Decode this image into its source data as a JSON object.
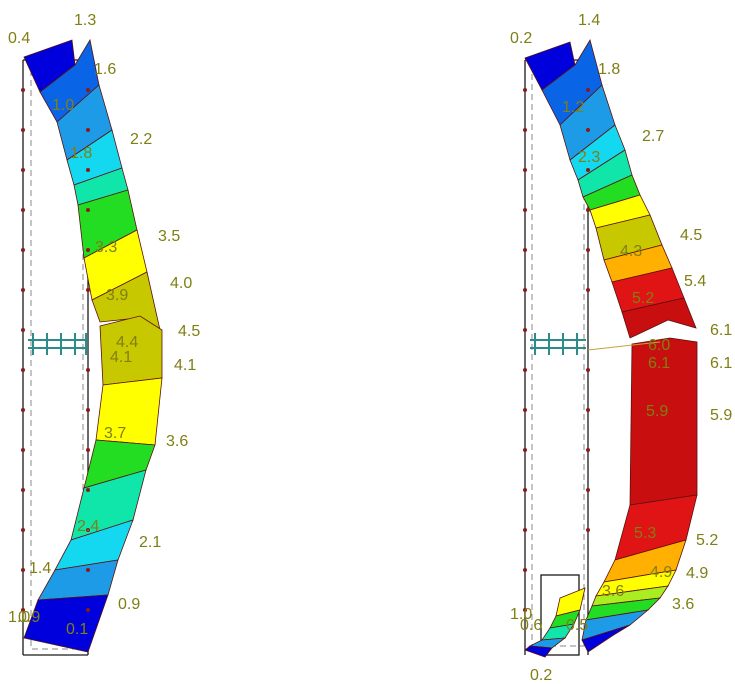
{
  "colors": {
    "label": "#7f7f14",
    "frame": "#1a1a1a",
    "node_dot": "#8b1a1a",
    "support": "#2e8b8b",
    "contour_line": "#5a1010",
    "contour_scale": [
      "#0000dd",
      "#0a64e6",
      "#1e9be6",
      "#14d8f0",
      "#10e6aa",
      "#22dd22",
      "#aaee22",
      "#ffff00",
      "#c8c800",
      "#ffb000",
      "#ff5a14",
      "#e01414",
      "#c80e0e"
    ]
  },
  "left_figure": {
    "labels": {
      "top_left": "0.4",
      "top": "1.3",
      "l1_6": "1.6",
      "l1_0": "1.0",
      "l2_2": "2.2",
      "l1_8": "1.8",
      "l3_5": "3.5",
      "l3_3": "3.3",
      "l4_0": "4.0",
      "l3_9": "3.9",
      "l4_5": "4.5",
      "l4_4": "4.4",
      "l4_1a": "4.1",
      "l4_1b": "4.1",
      "l3_7": "3.7",
      "l3_6": "3.6",
      "l2_4": "2.4",
      "l2_1": "2.1",
      "l1_4": "1.4",
      "l0_9": "0.9",
      "l1_0_bottom": "1.0",
      "l0_9_bottom": "0.9",
      "l0_1": "0.1"
    }
  },
  "right_figure": {
    "labels": {
      "top_left": "0.2",
      "top": "1.4",
      "r1_8": "1.8",
      "r1_2": "1.2",
      "r2_7": "2.7",
      "r2_3": "2.3",
      "r4_5": "4.5",
      "r4_3": "4.3",
      "r5_4": "5.4",
      "r5_2": "5.2",
      "r6_1a": "6.1",
      "r6_0": "6.0",
      "r6_1b": "6.1",
      "r6_1c": "6.1",
      "r5_9a": "5.9",
      "r5_9b": "5.9",
      "r5_3": "5.3",
      "r5_2b": "5.2",
      "r4_9a": "4.9",
      "r4_9b": "4.9",
      "r3_6a": "3.6",
      "r3_6b": "3.6",
      "r1_0": "1.0",
      "r0_6": "0.6",
      "r0_5": "0.5",
      "r0_2": "0.2"
    }
  }
}
